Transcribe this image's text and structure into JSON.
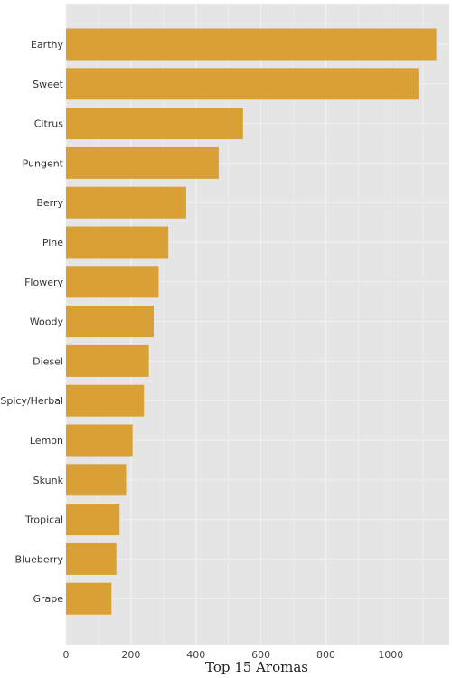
{
  "chart_data": {
    "type": "bar",
    "orientation": "horizontal",
    "title": "Top 15 Aromas",
    "xlabel": "",
    "ylabel": "",
    "categories": [
      "Earthy",
      "Sweet",
      "Citrus",
      "Pungent",
      "Berry",
      "Pine",
      "Flowery",
      "Woody",
      "Diesel",
      "Spicy/Herbal",
      "Lemon",
      "Skunk",
      "Tropical",
      "Blueberry",
      "Grape"
    ],
    "values": [
      1140,
      1085,
      545,
      470,
      370,
      315,
      285,
      270,
      255,
      240,
      205,
      185,
      165,
      155,
      140
    ],
    "xlim": [
      0,
      1180
    ],
    "xticks": [
      0,
      200,
      400,
      600,
      800,
      1000
    ],
    "grid": true,
    "colors": {
      "bar": "#d9a036",
      "plot_background": "#e5e5e5",
      "grid": "#f2f2f2"
    }
  }
}
